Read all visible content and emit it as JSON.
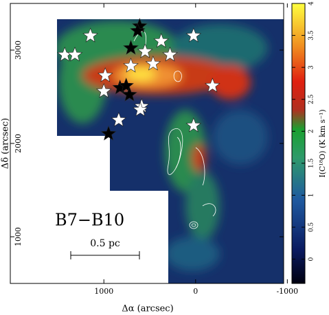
{
  "chart_data": {
    "type": "scatter",
    "x_label": "Δα (arcsec)",
    "y_label": "Δδ (arcsec)",
    "annotation": "B7−B10",
    "scale_label": "0.5 pc",
    "xlim": [
      2020,
      -960
    ],
    "xticks": [
      1000,
      0,
      -1000
    ],
    "ylim": [
      500,
      3500
    ],
    "yticks": [
      1000,
      2000,
      3000
    ],
    "colorbar": {
      "label": "I(C¹⁸O) (K km s⁻¹)",
      "lim": [
        -0.38,
        4
      ],
      "ticks": [
        0,
        0.5,
        1,
        1.5,
        2,
        2.5,
        3,
        3.5,
        4
      ]
    },
    "series": [
      {
        "color": "#ffffff",
        "x": [
          1147,
          1426,
          1316,
          985,
          1000,
          706,
          463,
          551,
          375,
          279,
          22,
          -184,
          588,
          603,
          838,
          22
        ],
        "values": [
          3154,
          2949,
          2949,
          2728,
          2559,
          2831,
          2853,
          2985,
          3096,
          2949,
          3154,
          2618,
          2397,
          2360,
          2250,
          2191
        ]
      },
      {
        "color": "#000000",
        "x": [
          610,
          632,
          706,
          824,
          757,
          721,
          949
        ],
        "values": [
          3257,
          3206,
          3022,
          2596,
          2618,
          2522,
          2103
        ]
      }
    ]
  }
}
